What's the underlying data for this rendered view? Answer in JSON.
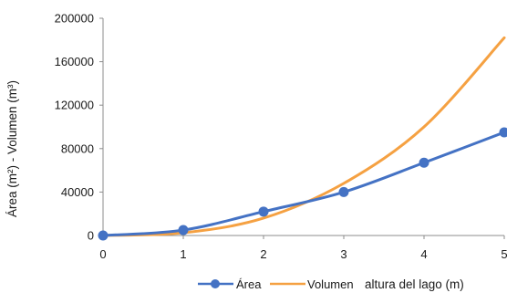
{
  "chart_data": {
    "type": "line",
    "x": [
      0,
      1,
      2,
      3,
      4,
      5
    ],
    "xlabel": "altura del  lago (m)",
    "ylabel": "Área (m²) - Volumen (m³)",
    "xlim": [
      0,
      5
    ],
    "ylim": [
      0,
      200000
    ],
    "x_ticks": [
      0,
      1,
      2,
      3,
      4,
      5
    ],
    "y_ticks": [
      0,
      40000,
      80000,
      120000,
      160000,
      200000
    ],
    "grid": false,
    "legend_position": "bottom",
    "series": [
      {
        "name": "Área",
        "color": "#4472C4",
        "markers": true,
        "values": [
          0,
          5000,
          22000,
          40000,
          67000,
          95000
        ]
      },
      {
        "name": "Volumen",
        "color": "#F5A142",
        "markers": false,
        "values": [
          0,
          2500,
          16000,
          48000,
          100000,
          182000
        ]
      }
    ]
  }
}
